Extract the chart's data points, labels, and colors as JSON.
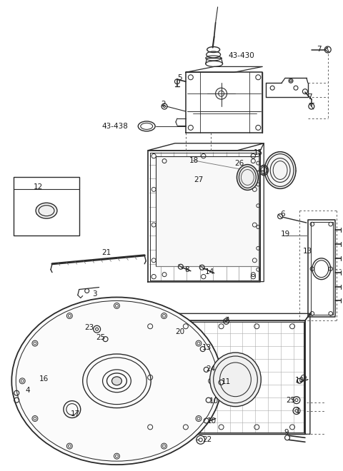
{
  "bg": "white",
  "lc": "#2a2a2a",
  "lw_main": 1.0,
  "lw_thin": 0.6,
  "lw_thick": 1.4,
  "fs": 7.5,
  "labels": [
    [
      "5",
      252,
      108
    ],
    [
      "2",
      228,
      145
    ],
    [
      "43-438",
      160,
      176
    ],
    [
      "43-430",
      338,
      77
    ],
    [
      "7",
      448,
      67
    ],
    [
      "7",
      435,
      135
    ],
    [
      "18",
      272,
      224
    ],
    [
      "15",
      362,
      213
    ],
    [
      "26",
      335,
      228
    ],
    [
      "27",
      278,
      252
    ],
    [
      "6",
      396,
      300
    ],
    [
      "19",
      400,
      328
    ],
    [
      "13",
      432,
      352
    ],
    [
      "12",
      52,
      262
    ],
    [
      "21",
      148,
      354
    ],
    [
      "3",
      132,
      412
    ],
    [
      "8",
      262,
      378
    ],
    [
      "14",
      294,
      381
    ],
    [
      "2",
      318,
      450
    ],
    [
      "20",
      252,
      466
    ],
    [
      "13",
      290,
      488
    ],
    [
      "24",
      295,
      518
    ],
    [
      "11",
      317,
      536
    ],
    [
      "10",
      300,
      563
    ],
    [
      "10",
      297,
      592
    ],
    [
      "22",
      290,
      618
    ],
    [
      "23",
      124,
      460
    ],
    [
      "25",
      140,
      474
    ],
    [
      "4",
      38,
      548
    ],
    [
      "16",
      60,
      532
    ],
    [
      "17",
      105,
      581
    ],
    [
      "25",
      408,
      562
    ],
    [
      "1",
      418,
      577
    ],
    [
      "9",
      402,
      608
    ],
    [
      "10",
      420,
      534
    ]
  ]
}
